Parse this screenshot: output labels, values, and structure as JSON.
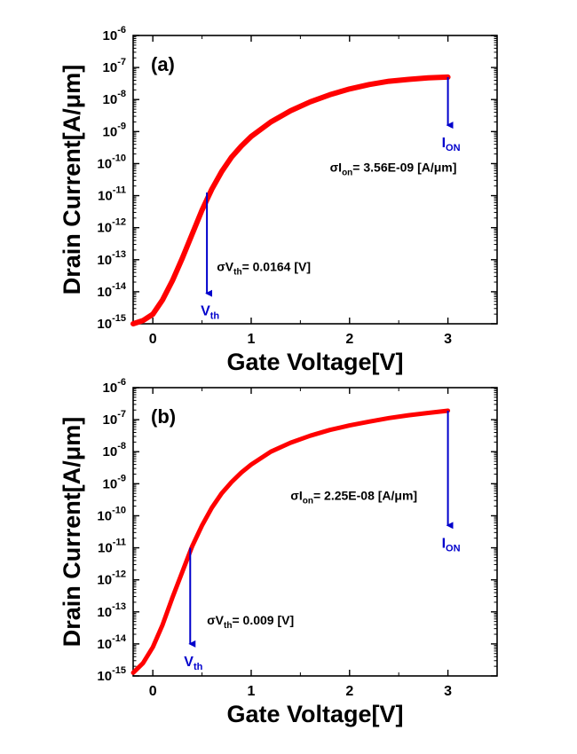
{
  "chart_data": [
    {
      "type": "line",
      "panel_label": "(a)",
      "xlabel": "Gate Voltage[V]",
      "ylabel": "Drain Current[A/μm]",
      "xlim": [
        -0.2,
        3.5
      ],
      "ylim_log10": [
        -15,
        -6
      ],
      "yscale": "log",
      "x_ticks": [
        0,
        1,
        2,
        3
      ],
      "x_tick_labels": [
        "0",
        "1",
        "2",
        "3"
      ],
      "y_ticks_exp": [
        -15,
        -14,
        -13,
        -12,
        -11,
        -10,
        -9,
        -8,
        -7,
        -6
      ],
      "y_tick_base": "10",
      "series_color": "#ff0000",
      "annotation_color": "#0000cc",
      "series": [
        {
          "x": [
            -0.2,
            -0.1,
            0.0,
            0.1,
            0.2,
            0.3,
            0.4,
            0.5,
            0.6,
            0.7,
            0.8,
            0.9,
            1.0,
            1.2,
            1.4,
            1.6,
            1.8,
            2.0,
            2.2,
            2.4,
            2.6,
            2.8,
            3.0
          ],
          "y_log10": [
            -15.0,
            -14.9,
            -14.7,
            -14.25,
            -13.65,
            -12.95,
            -12.2,
            -11.45,
            -10.8,
            -10.25,
            -9.8,
            -9.45,
            -9.15,
            -8.7,
            -8.35,
            -8.07,
            -7.85,
            -7.67,
            -7.53,
            -7.43,
            -7.37,
            -7.32,
            -7.3
          ]
        }
      ],
      "annotations": {
        "vth": {
          "x": 0.55,
          "top_log10": -10.9,
          "bottom_log10": -14.05,
          "label_main": "V",
          "label_sub": "th"
        },
        "ion": {
          "x": 3.0,
          "top_log10": -7.3,
          "bottom_log10": -8.8,
          "label_main": "I",
          "label_sub": "ON"
        },
        "sigma_ion": {
          "pre": "σI",
          "sub": "on",
          "post": "= 3.56E-09 [A/μm]",
          "x": 1.8,
          "y_log10": -10.25
        },
        "sigma_vth": {
          "pre": "σV",
          "sub": "th",
          "post": "= 0.0164 [V]",
          "x": 0.65,
          "y_log10": -13.35
        }
      }
    },
    {
      "type": "line",
      "panel_label": "(b)",
      "xlabel": "Gate Voltage[V]",
      "ylabel": "Drain Current[A/μm]",
      "xlim": [
        -0.2,
        3.5
      ],
      "ylim_log10": [
        -15,
        -6
      ],
      "yscale": "log",
      "x_ticks": [
        0,
        1,
        2,
        3
      ],
      "x_tick_labels": [
        "0",
        "1",
        "2",
        "3"
      ],
      "y_ticks_exp": [
        -15,
        -14,
        -13,
        -12,
        -11,
        -10,
        -9,
        -8,
        -7,
        -6
      ],
      "y_tick_base": "10",
      "series_color": "#ff0000",
      "annotation_color": "#0000cc",
      "series": [
        {
          "x": [
            -0.2,
            -0.1,
            0.0,
            0.1,
            0.2,
            0.3,
            0.4,
            0.5,
            0.6,
            0.7,
            0.8,
            0.9,
            1.0,
            1.2,
            1.4,
            1.6,
            1.8,
            2.0,
            2.2,
            2.4,
            2.6,
            2.8,
            3.0
          ],
          "y_log10": [
            -14.9,
            -14.6,
            -14.1,
            -13.4,
            -12.55,
            -11.75,
            -10.95,
            -10.3,
            -9.75,
            -9.3,
            -8.95,
            -8.65,
            -8.4,
            -8.0,
            -7.72,
            -7.5,
            -7.32,
            -7.18,
            -7.06,
            -6.95,
            -6.86,
            -6.79,
            -6.72
          ]
        }
      ],
      "annotations": {
        "vth": {
          "x": 0.38,
          "top_log10": -11.0,
          "bottom_log10": -14.0,
          "label_main": "V",
          "label_sub": "th"
        },
        "ion": {
          "x": 3.0,
          "top_log10": -6.72,
          "bottom_log10": -10.3,
          "label_main": "I",
          "label_sub": "ON"
        },
        "sigma_ion": {
          "pre": "σI",
          "sub": "on",
          "post": "= 2.25E-08 [A/μm]",
          "x": 1.4,
          "y_log10": -9.5
        },
        "sigma_vth": {
          "pre": "σV",
          "sub": "th",
          "post": "= 0.009 [V]",
          "x": 0.55,
          "y_log10": -13.4
        }
      }
    }
  ]
}
